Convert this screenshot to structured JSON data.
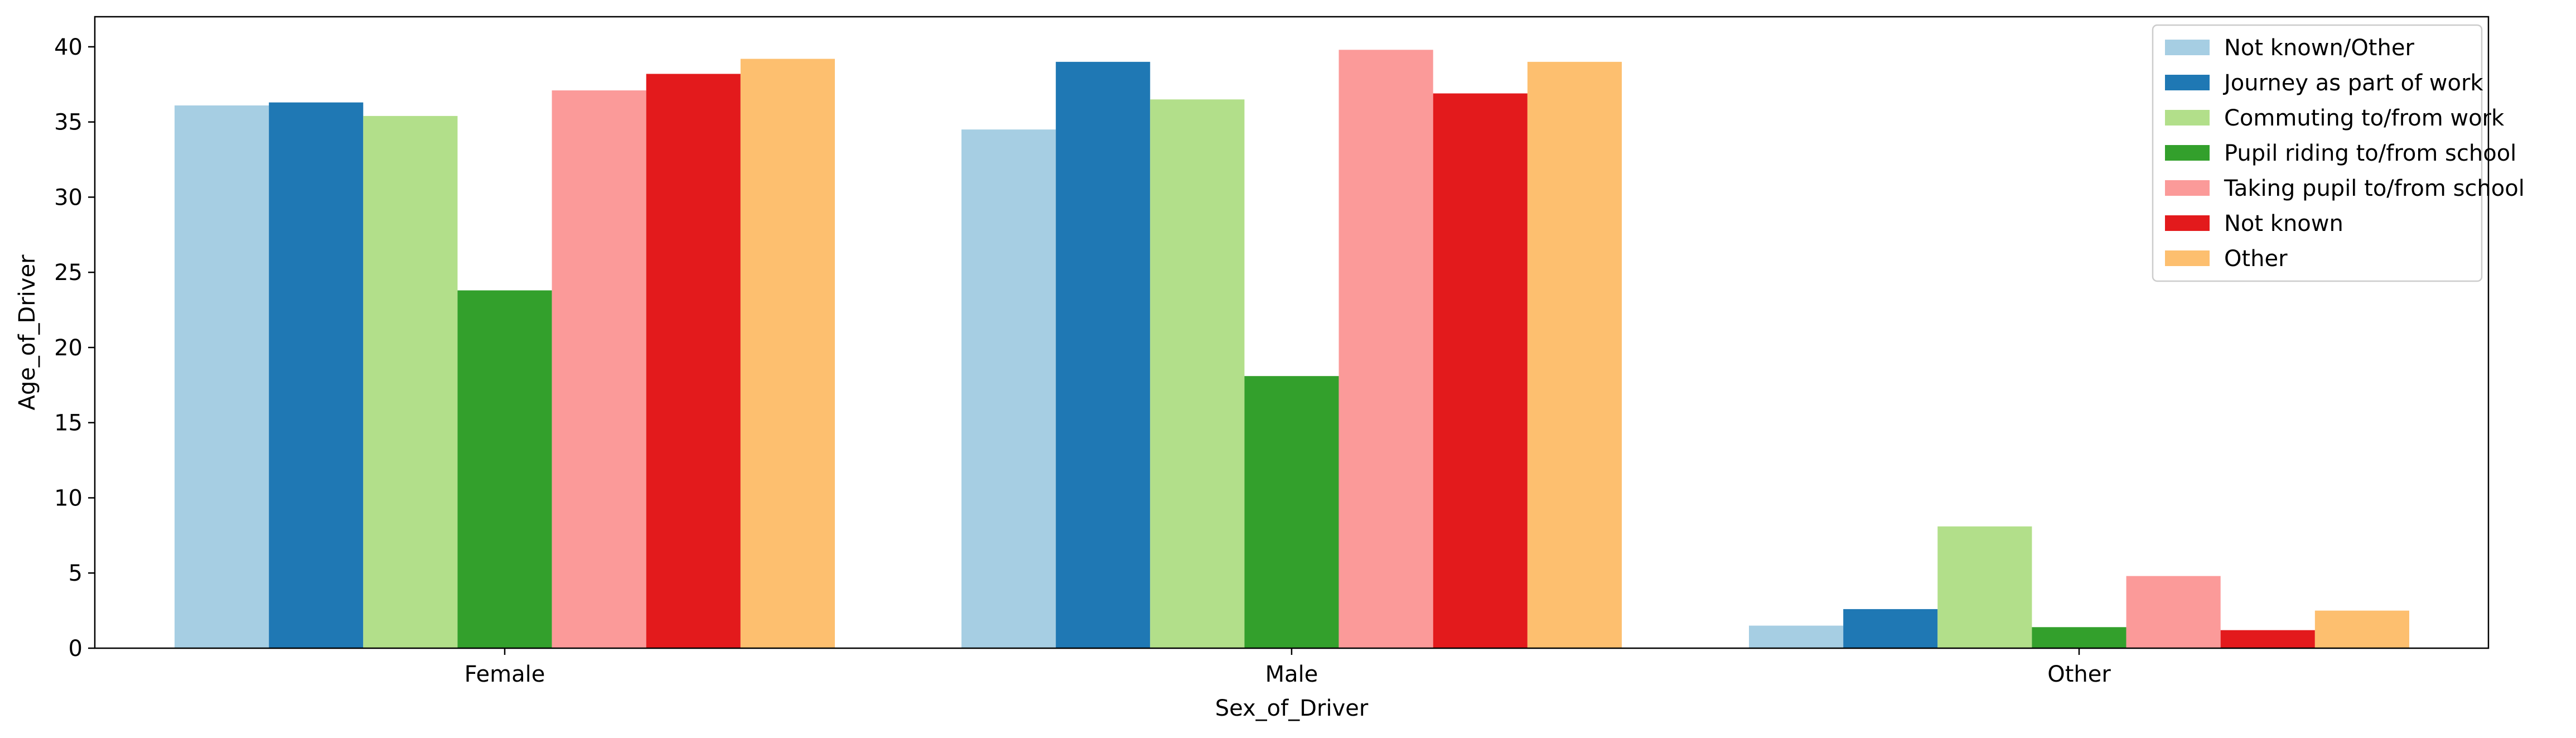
{
  "chart_data": {
    "type": "bar",
    "xlabel": "Sex_of_Driver",
    "ylabel": "Age_of_Driver",
    "ylim": [
      0,
      42
    ],
    "yticks": [
      0,
      5,
      10,
      15,
      20,
      25,
      30,
      35,
      40
    ],
    "grid": false,
    "legend_position": "top-right",
    "categories": [
      "Female",
      "Male",
      "Other"
    ],
    "series": [
      {
        "name": "Not known/Other",
        "color": "#a6cee3",
        "values": [
          36.1,
          34.5,
          1.5
        ]
      },
      {
        "name": "Journey as part of work",
        "color": "#1f78b4",
        "values": [
          36.3,
          39.0,
          2.6
        ]
      },
      {
        "name": "Commuting to/from work",
        "color": "#b2df8a",
        "values": [
          35.4,
          36.5,
          8.1
        ]
      },
      {
        "name": "Pupil riding to/from school",
        "color": "#33a02c",
        "values": [
          23.8,
          18.1,
          1.4
        ]
      },
      {
        "name": "Taking pupil to/from school",
        "color": "#fb9a99",
        "values": [
          37.1,
          39.8,
          4.8
        ]
      },
      {
        "name": "Not known",
        "color": "#e31a1c",
        "values": [
          38.2,
          36.9,
          1.2
        ]
      },
      {
        "name": "Other",
        "color": "#fdbf6f",
        "values": [
          39.2,
          39.0,
          2.5
        ]
      }
    ]
  }
}
